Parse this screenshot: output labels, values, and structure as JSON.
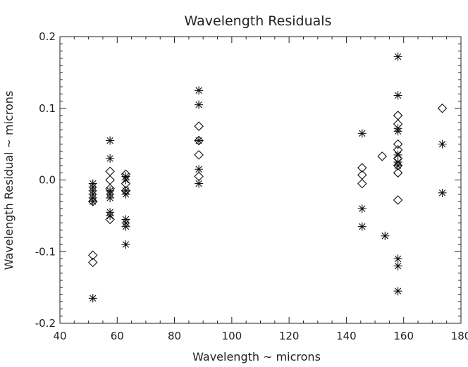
{
  "chart_data": {
    "type": "scatter",
    "title": "Wavelength Residuals",
    "xlabel": "Wavelength ~ microns",
    "ylabel": "Wavelength Residual ~ microns",
    "xlim": [
      40,
      180
    ],
    "ylim": [
      -0.2,
      0.2
    ],
    "grid": false,
    "xticks": [
      40,
      60,
      80,
      100,
      120,
      140,
      160,
      180
    ],
    "xtick_labels": [
      "40",
      "60",
      "80",
      "100",
      "120",
      "140",
      "160",
      "180"
    ],
    "yticks": [
      -0.2,
      -0.1,
      0.0,
      0.1,
      0.2
    ],
    "ytick_labels": [
      "-0.2",
      "-0.1",
      "0.0",
      "0.1",
      "0.2"
    ],
    "series": [
      {
        "marker": "asterisk",
        "points": [
          [
            51.5,
            -0.005
          ],
          [
            51.5,
            -0.01
          ],
          [
            51.5,
            -0.015
          ],
          [
            51.5,
            -0.02
          ],
          [
            51.5,
            -0.025
          ],
          [
            51.5,
            -0.03
          ],
          [
            51.5,
            -0.165
          ],
          [
            57.5,
            0.055
          ],
          [
            57.5,
            0.03
          ],
          [
            57.5,
            -0.015
          ],
          [
            57.5,
            -0.02
          ],
          [
            57.5,
            -0.025
          ],
          [
            57.5,
            -0.045
          ],
          [
            57.5,
            -0.05
          ],
          [
            63,
            0.005
          ],
          [
            63,
            0.0
          ],
          [
            63,
            -0.015
          ],
          [
            63,
            -0.02
          ],
          [
            63,
            -0.055
          ],
          [
            63,
            -0.06
          ],
          [
            63,
            -0.065
          ],
          [
            63,
            -0.09
          ],
          [
            88.5,
            0.125
          ],
          [
            88.5,
            0.105
          ],
          [
            88.5,
            0.055
          ],
          [
            88.5,
            0.015
          ],
          [
            88.5,
            -0.005
          ],
          [
            145.5,
            0.065
          ],
          [
            145.5,
            -0.04
          ],
          [
            145.5,
            -0.065
          ],
          [
            153.5,
            -0.078
          ],
          [
            158,
            0.172
          ],
          [
            158,
            0.118
          ],
          [
            158,
            0.072
          ],
          [
            158,
            0.068
          ],
          [
            158,
            0.035
          ],
          [
            158,
            0.025
          ],
          [
            158,
            0.02
          ],
          [
            158,
            -0.11
          ],
          [
            158,
            -0.12
          ],
          [
            158,
            -0.155
          ],
          [
            173.5,
            0.05
          ],
          [
            173.5,
            -0.018
          ]
        ]
      },
      {
        "marker": "diamond",
        "points": [
          [
            51.5,
            -0.03
          ],
          [
            51.5,
            -0.105
          ],
          [
            51.5,
            -0.115
          ],
          [
            57.5,
            0.012
          ],
          [
            57.5,
            0.0
          ],
          [
            57.5,
            -0.012
          ],
          [
            57.5,
            -0.055
          ],
          [
            63,
            0.008
          ],
          [
            63,
            -0.005
          ],
          [
            63,
            -0.015
          ],
          [
            88.5,
            0.075
          ],
          [
            88.5,
            0.055
          ],
          [
            88.5,
            0.035
          ],
          [
            88.5,
            0.005
          ],
          [
            145.5,
            0.017
          ],
          [
            145.5,
            0.007
          ],
          [
            145.5,
            -0.005
          ],
          [
            152.5,
            0.033
          ],
          [
            158,
            0.09
          ],
          [
            158,
            0.078
          ],
          [
            158,
            0.05
          ],
          [
            158,
            0.042
          ],
          [
            158,
            0.03
          ],
          [
            158,
            0.02
          ],
          [
            158,
            0.01
          ],
          [
            158,
            -0.028
          ],
          [
            173.5,
            0.1
          ]
        ]
      }
    ]
  }
}
